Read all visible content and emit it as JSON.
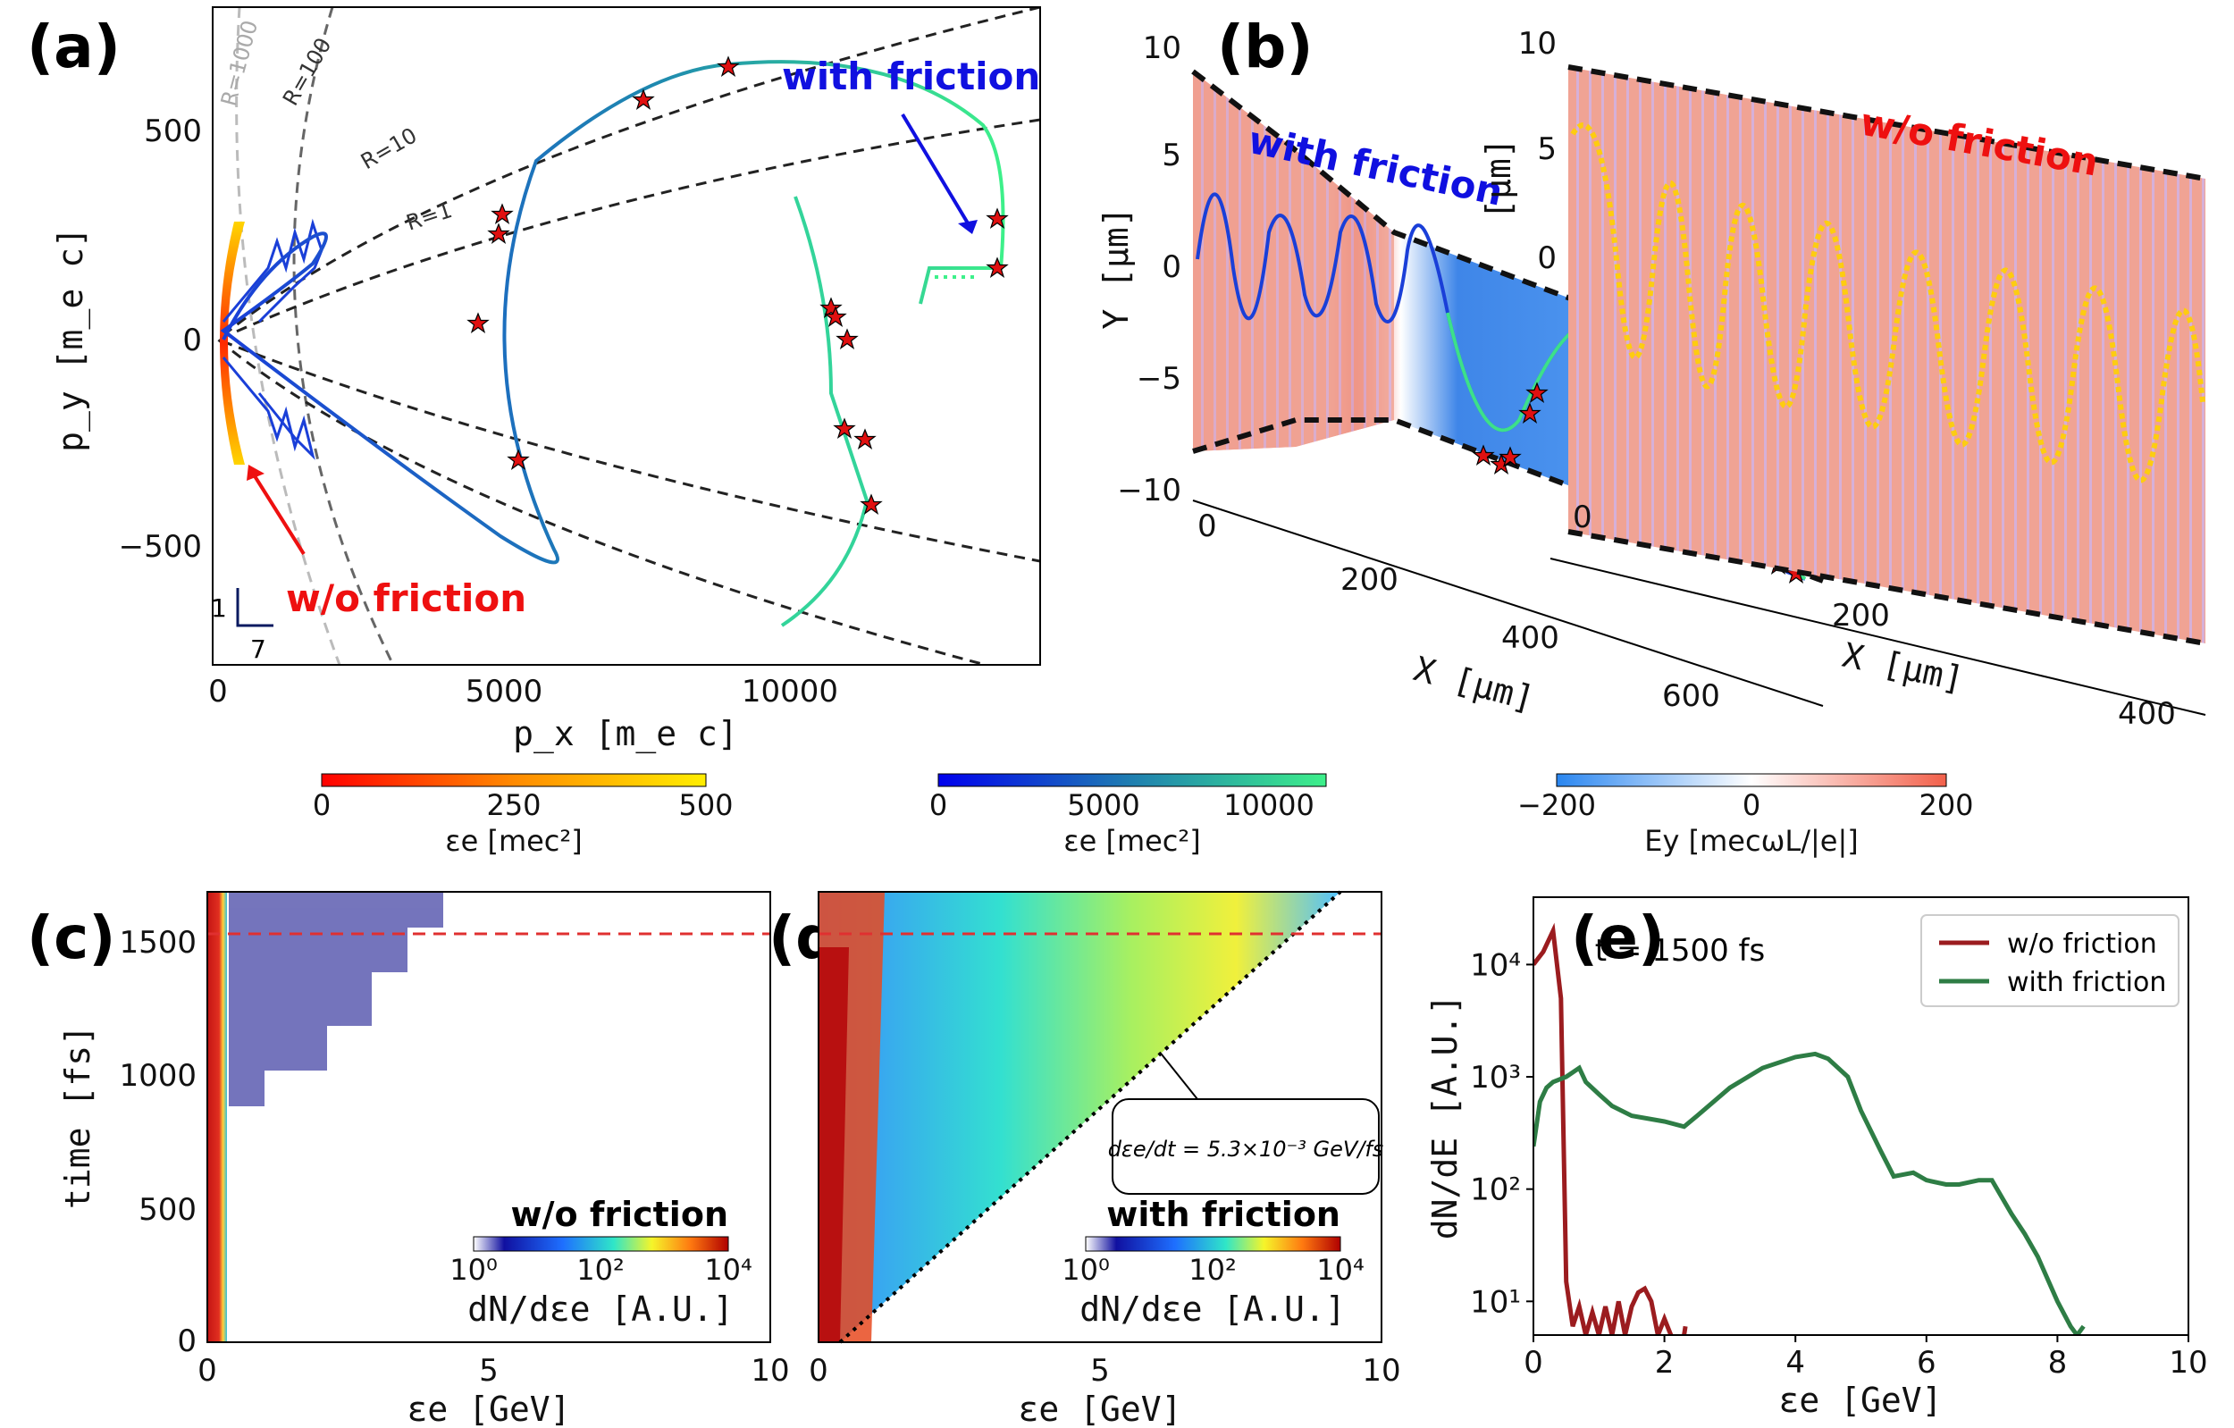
{
  "panel_labels": [
    "(a)",
    "(b)",
    "(c)",
    "(d)",
    "(e)"
  ],
  "panel_a": {
    "xlabel": "p_x  [m_e c]",
    "ylabel": "p_y  [m_e c]",
    "xticks": [
      "0",
      "5000",
      "10000"
    ],
    "yticks": [
      "500",
      "0",
      "−500"
    ],
    "r_labels": [
      "R=1000",
      "R=100",
      "R=10",
      "R=1"
    ],
    "with_friction": "with friction",
    "without_friction": "w/o friction",
    "scale_v": "1",
    "scale_h": "7"
  },
  "panel_b": {
    "ylabel": "Y  [μm]",
    "xlabel_left": "X  [μm]",
    "xlabel_right": "X  [μm]",
    "yticks": [
      "10",
      "5",
      "0",
      "−5",
      "−10"
    ],
    "yticks_right": [
      "10",
      "5",
      "0"
    ],
    "xticks_left": [
      "0",
      "200",
      "400",
      "600"
    ],
    "xticks_right": [
      "0",
      "200",
      "400"
    ],
    "right_ylabel": "[μm]",
    "with_friction": "with friction",
    "without_friction": "w/o friction"
  },
  "colorbars": [
    {
      "label": "εe [mec²]",
      "ticks": [
        "0",
        "250",
        "500"
      ]
    },
    {
      "label": "εe [mec²]",
      "ticks": [
        "0",
        "5000",
        "10000"
      ]
    },
    {
      "label": "Ey [mecωL/|e|]",
      "ticks": [
        "−200",
        "0",
        "200"
      ]
    }
  ],
  "panel_c": {
    "ylabel": "time [fs]",
    "xlabel": "εe [GeV]",
    "yticks": [
      "0",
      "500",
      "1000",
      "1500"
    ],
    "xticks": [
      "0",
      "5",
      "10"
    ],
    "title": "w/o friction",
    "cb_ticks": [
      "10⁰",
      "10²",
      "10⁴"
    ],
    "cb_label": "dN/dεe [A.U.]"
  },
  "panel_d": {
    "xlabel": "εe [GeV]",
    "xticks": [
      "0",
      "5",
      "10"
    ],
    "title": "with friction",
    "cb_ticks": [
      "10⁰",
      "10²",
      "10⁴"
    ],
    "cb_label": "dN/dεe [A.U.]",
    "slope_text": "dεe/dt = 5.3×10⁻³ GeV/fs"
  },
  "chart_data": {
    "type": "line",
    "title": "t = 1500 fs",
    "xlabel": "εe [GeV]",
    "ylabel": "dN/dE [A.U.]",
    "xlim": [
      0,
      10
    ],
    "ylim_log10": [
      0.7,
      4.6
    ],
    "yscale": "log",
    "xticks": [
      "0",
      "2",
      "4",
      "6",
      "8",
      "10"
    ],
    "yticks": [
      "10¹",
      "10²",
      "10³",
      "10⁴"
    ],
    "legend_position": "top-right",
    "series": [
      {
        "name": "w/o friction",
        "color": "#9b1c1f",
        "x": [
          0.0,
          0.15,
          0.3,
          0.42,
          0.5,
          0.6,
          0.7,
          0.8,
          0.9,
          1.0,
          1.1,
          1.2,
          1.3,
          1.4,
          1.5,
          1.6,
          1.7,
          1.8,
          1.9,
          2.0,
          2.1,
          2.2,
          2.3,
          2.32
        ],
        "y": [
          10000,
          13000,
          20000,
          5000,
          15,
          6,
          9,
          5,
          8,
          5,
          9,
          5,
          10,
          5,
          9,
          12,
          13,
          10,
          5,
          7,
          5,
          4.5,
          5,
          6
        ]
      },
      {
        "name": "with friction",
        "color": "#2e7d45",
        "x": [
          0.0,
          0.1,
          0.2,
          0.3,
          0.5,
          0.7,
          0.8,
          1.0,
          1.2,
          1.5,
          2.0,
          2.3,
          2.5,
          3.0,
          3.5,
          4.0,
          4.3,
          4.5,
          4.8,
          5.0,
          5.3,
          5.5,
          5.8,
          6.0,
          6.3,
          6.5,
          6.8,
          7.0,
          7.3,
          7.5,
          7.7,
          8.0,
          8.2,
          8.3,
          8.4
        ],
        "y": [
          240,
          600,
          800,
          900,
          1000,
          1200,
          900,
          700,
          550,
          450,
          400,
          360,
          450,
          800,
          1200,
          1500,
          1600,
          1450,
          1000,
          500,
          220,
          130,
          140,
          120,
          110,
          110,
          120,
          120,
          60,
          40,
          25,
          10,
          6,
          5,
          6
        ]
      }
    ]
  }
}
